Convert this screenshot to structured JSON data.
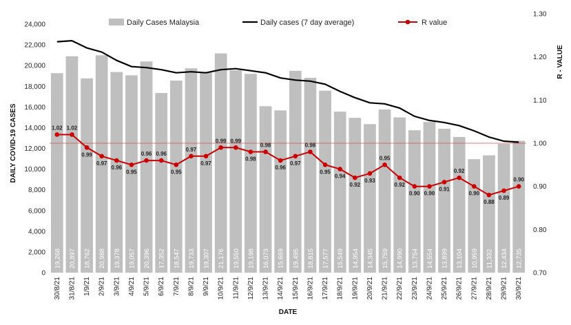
{
  "chart_data": {
    "type": "bar",
    "xlabel": "DATE",
    "ylabel": "DAILY COVID-19 CASES",
    "y2label": "R - VALUE",
    "ylim": [
      0,
      25000
    ],
    "y_ticks": [
      "0",
      "2,000",
      "4,000",
      "6,000",
      "8,000",
      "10,000",
      "12,000",
      "14,000",
      "16,000",
      "18,000",
      "20,000",
      "22,000",
      "24,000"
    ],
    "y2lim": [
      0.7,
      1.3
    ],
    "y2_ticks": [
      "0.70",
      "0.80",
      "0.90",
      "1.00",
      "1.10",
      "1.20",
      "1.30"
    ],
    "reference_line_y2": 1.0,
    "legend_position": "top",
    "categories": [
      "30/8/21",
      "31/8/21",
      "1/9/21",
      "2/9/21",
      "3/9/21",
      "4/9/21",
      "5/9/21",
      "6/9/21",
      "7/9/21",
      "8/9/21",
      "9/9/21",
      "10/9/21",
      "11/9/21",
      "12/9/21",
      "13/9/21",
      "14/9/21",
      "15/9/21",
      "16/9/21",
      "17/9/21",
      "18/9/21",
      "19/9/21",
      "20/9/21",
      "21/9/21",
      "22/9/21",
      "23/9/21",
      "24/9/21",
      "25/9/21",
      "26/9/21",
      "27/9/21",
      "28/9/21",
      "29/9/21",
      "30/9/21"
    ],
    "series": [
      {
        "name": "Daily Cases Malaysia",
        "type": "bar",
        "axis": "left",
        "color": "#bfbfbf",
        "values": [
          19268,
          20897,
          18762,
          20988,
          19378,
          19057,
          20396,
          17352,
          18547,
          19733,
          19307,
          21176,
          19550,
          19198,
          16073,
          15669,
          19495,
          18815,
          17577,
          15549,
          14954,
          14345,
          15759,
          14990,
          13754,
          14554,
          13899,
          13104,
          10959,
          11332,
          12434,
          12735
        ],
        "labels": [
          "19,268",
          "20,897",
          "18,762",
          "20,988",
          "19,378",
          "19,057",
          "20,396",
          "17,352",
          "18,547",
          "19,733",
          "19,307",
          "21,176",
          "19,550",
          "19,198",
          "16,073",
          "15,669",
          "19,495",
          "18,815",
          "17,577",
          "15,549",
          "14,954",
          "14,345",
          "15,759",
          "14,990",
          "13,754",
          "14,554",
          "13,899",
          "13,104",
          "10,959",
          "11,332",
          "12,434",
          "12,735"
        ]
      },
      {
        "name": "Daily cases (7 day average)",
        "type": "line",
        "axis": "left",
        "color": "#000000",
        "values": [
          22300,
          22400,
          21700,
          21300,
          20500,
          19900,
          19800,
          19600,
          19300,
          19400,
          19300,
          19600,
          19700,
          19500,
          19300,
          18800,
          18600,
          18500,
          18200,
          17500,
          16900,
          16400,
          16300,
          15900,
          15100,
          14700,
          14500,
          14200,
          13700,
          13100,
          12700,
          12600
        ]
      },
      {
        "name": "R value",
        "type": "line",
        "axis": "right",
        "color": "#cc0000",
        "values": [
          1.02,
          1.02,
          0.99,
          0.97,
          0.96,
          0.95,
          0.96,
          0.96,
          0.95,
          0.97,
          0.97,
          0.99,
          0.99,
          0.98,
          0.98,
          0.96,
          0.97,
          0.98,
          0.95,
          0.94,
          0.92,
          0.93,
          0.95,
          0.92,
          0.9,
          0.9,
          0.91,
          0.92,
          0.9,
          0.88,
          0.89,
          0.9
        ],
        "labels": [
          "1.02",
          "1.02",
          "0.99",
          "0.97",
          "0.96",
          "0.95",
          "0.96",
          "0.96",
          "0.95",
          "0.97",
          "0.97",
          "0.99",
          "0.99",
          "0.98",
          "0.98",
          "0.96",
          "0.97",
          "0.98",
          "0.95",
          "0.94",
          "0.92",
          "0.93",
          "0.95",
          "0.92",
          "0.90",
          "0.90",
          "0.91",
          "0.92",
          "0.90",
          "0.88",
          "0.89",
          "0.90"
        ]
      }
    ]
  }
}
